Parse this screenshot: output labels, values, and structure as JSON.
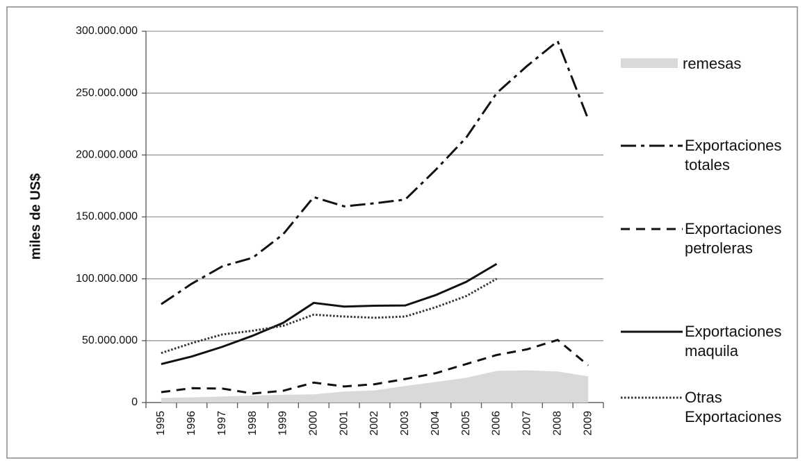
{
  "chart_data": {
    "type": "line",
    "y_label": "miles de US$",
    "categories": [
      "1995",
      "1996",
      "1997",
      "1998",
      "1999",
      "2000",
      "2001",
      "2002",
      "2003",
      "2004",
      "2005",
      "2006",
      "2007",
      "2008",
      "2009"
    ],
    "ylim": [
      0,
      300000000
    ],
    "yticks": [
      0,
      {
        "value": 50000000,
        "label": "50.000.000"
      },
      {
        "value": 100000000,
        "label": "100.000.000"
      },
      {
        "value": 150000000,
        "label": "150.000.000"
      },
      {
        "value": 200000000,
        "label": "200.000.000"
      },
      {
        "value": 250000000,
        "label": "250.000.000"
      },
      {
        "value": 300000000,
        "label": "300.000.000"
      }
    ],
    "grid": true,
    "legend": "right",
    "series": [
      {
        "name": "remesas",
        "color": "#d9d9d9",
        "style": "area",
        "values": [
          3700000,
          4200000,
          4900000,
          5600000,
          6300000,
          6600000,
          8900000,
          9800000,
          13400000,
          16600000,
          20000000,
          25600000,
          26000000,
          25100000,
          21200000
        ]
      },
      {
        "name": "Exportaciones totales",
        "color": "#111111",
        "style": "dash-dot",
        "values": [
          79500000,
          96000000,
          110000000,
          117000000,
          136000000,
          166000000,
          158500000,
          161000000,
          164000000,
          188000000,
          214000000,
          250000000,
          272000000,
          292000000,
          229000000
        ]
      },
      {
        "name": "Exportaciones petroleras",
        "color": "#111111",
        "style": "dashed",
        "values": [
          8400000,
          11600000,
          11300000,
          7300000,
          9500000,
          16100000,
          13000000,
          14800000,
          19000000,
          23700000,
          31100000,
          38400000,
          43000000,
          50600000,
          30000000
        ]
      },
      {
        "name": "Exportaciones maquila",
        "color": "#111111",
        "style": "solid",
        "values": [
          31100000,
          37200000,
          45000000,
          54000000,
          64400000,
          80500000,
          77500000,
          78200000,
          78400000,
          86800000,
          97500000,
          112000000,
          null,
          null,
          null
        ]
      },
      {
        "name": "Otras Exportaciones",
        "color": "#333333",
        "style": "dotted",
        "values": [
          40000000,
          48000000,
          55000000,
          58000000,
          62000000,
          71000000,
          69500000,
          68500000,
          69500000,
          77000000,
          86000000,
          100000000,
          null,
          null,
          null
        ]
      }
    ]
  }
}
